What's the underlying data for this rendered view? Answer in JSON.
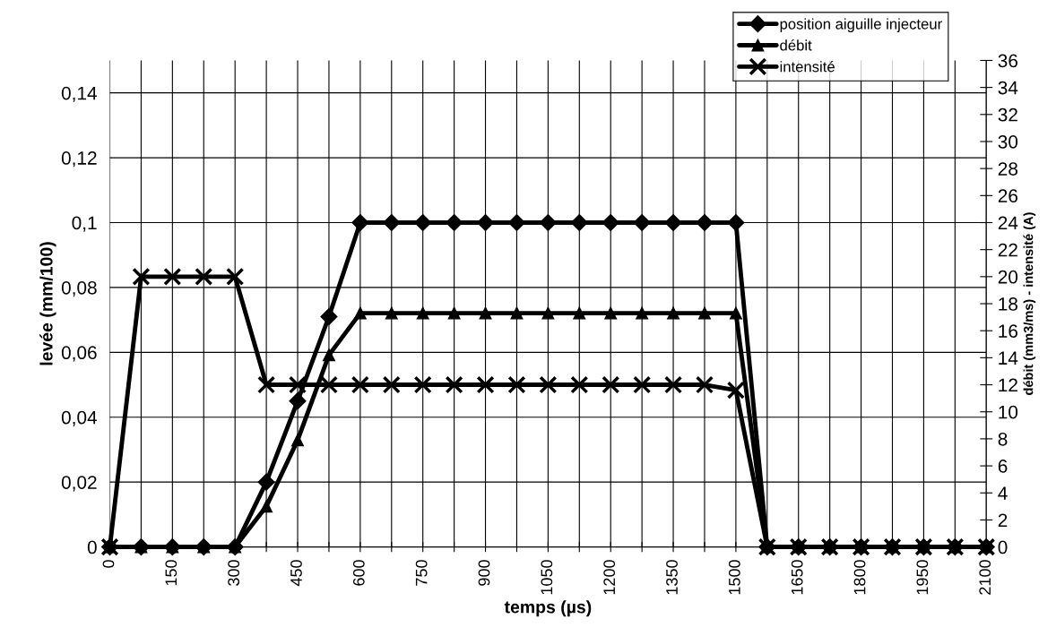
{
  "chart_data": {
    "type": "line",
    "xlabel": "temps (µs)",
    "ylabel": "levée (mm/100)",
    "y2label": "débit (mm3/ms) - intensité (A)",
    "x": [
      0,
      75,
      150,
      225,
      300,
      375,
      450,
      525,
      600,
      675,
      750,
      825,
      900,
      975,
      1050,
      1125,
      1200,
      1275,
      1350,
      1425,
      1500,
      1575,
      1650,
      1725,
      1800,
      1875,
      1950,
      2025,
      2100
    ],
    "series": [
      {
        "name": "position aiguille injecteur",
        "color": "#000000",
        "marker": "diamond",
        "values": [
          0,
          0,
          0,
          0,
          0,
          0.02,
          0.045,
          0.071,
          0.1,
          0.1,
          0.1,
          0.1,
          0.1,
          0.1,
          0.1,
          0.1,
          0.1,
          0.1,
          0.1,
          0.1,
          0.1,
          0,
          0,
          0,
          0,
          0,
          0,
          0,
          0
        ]
      },
      {
        "name": "débit",
        "color": "#000000",
        "marker": "triangle",
        "axis": "y2",
        "values": [
          0,
          0,
          0,
          0,
          0,
          3.0,
          7.9,
          14.2,
          17.3,
          17.3,
          17.3,
          17.3,
          17.3,
          17.3,
          17.3,
          17.3,
          17.3,
          17.3,
          17.3,
          17.3,
          17.3,
          0,
          0,
          0,
          0,
          0,
          0,
          0,
          0
        ]
      },
      {
        "name": "intensité",
        "color": "#000000",
        "marker": "cross",
        "axis": "y2",
        "values": [
          0,
          20,
          20,
          20,
          20,
          12,
          12,
          12,
          12,
          12,
          12,
          12,
          12,
          12,
          12,
          12,
          12,
          12,
          12,
          12,
          11.6,
          0,
          0,
          0,
          0,
          0,
          0,
          0,
          0
        ]
      }
    ],
    "xlim": [
      0,
      2100
    ],
    "xticks": [
      0,
      {
        "value": 75,
        "label": null
      },
      150,
      {
        "value": 225,
        "label": null
      },
      300,
      {
        "value": 375,
        "label": null
      },
      450,
      {
        "value": 525,
        "label": null
      },
      600,
      {
        "value": 675,
        "label": null
      },
      750,
      {
        "value": 825,
        "label": null
      },
      900,
      {
        "value": 975,
        "label": null
      },
      1050,
      {
        "value": 1125,
        "label": null
      },
      1200,
      {
        "value": 1275,
        "label": null
      },
      1350,
      {
        "value": 1425,
        "label": null
      },
      1500,
      {
        "value": 1575,
        "label": null
      },
      1650,
      {
        "value": 1725,
        "label": null
      },
      1800,
      {
        "value": 1875,
        "label": null
      },
      1950,
      {
        "value": 2025,
        "label": null
      },
      2100
    ],
    "ylim": [
      0,
      0.15
    ],
    "yticks": [
      0,
      {
        "value": 0.02,
        "label": "0,02"
      },
      {
        "value": 0.04,
        "label": "0,04"
      },
      {
        "value": 0.06,
        "label": "0,06"
      },
      {
        "value": 0.08,
        "label": "0,08"
      },
      {
        "value": 0.1,
        "label": "0,1"
      },
      {
        "value": 0.12,
        "label": "0,12"
      },
      {
        "value": 0.14,
        "label": "0,14"
      }
    ],
    "y2lim": [
      0,
      36
    ],
    "y2ticks": [
      0,
      2,
      4,
      6,
      8,
      10,
      12,
      14,
      16,
      18,
      20,
      22,
      24,
      26,
      28,
      30,
      32,
      34,
      36
    ],
    "grid": true,
    "legend": "top right",
    "line_style": "solid"
  }
}
